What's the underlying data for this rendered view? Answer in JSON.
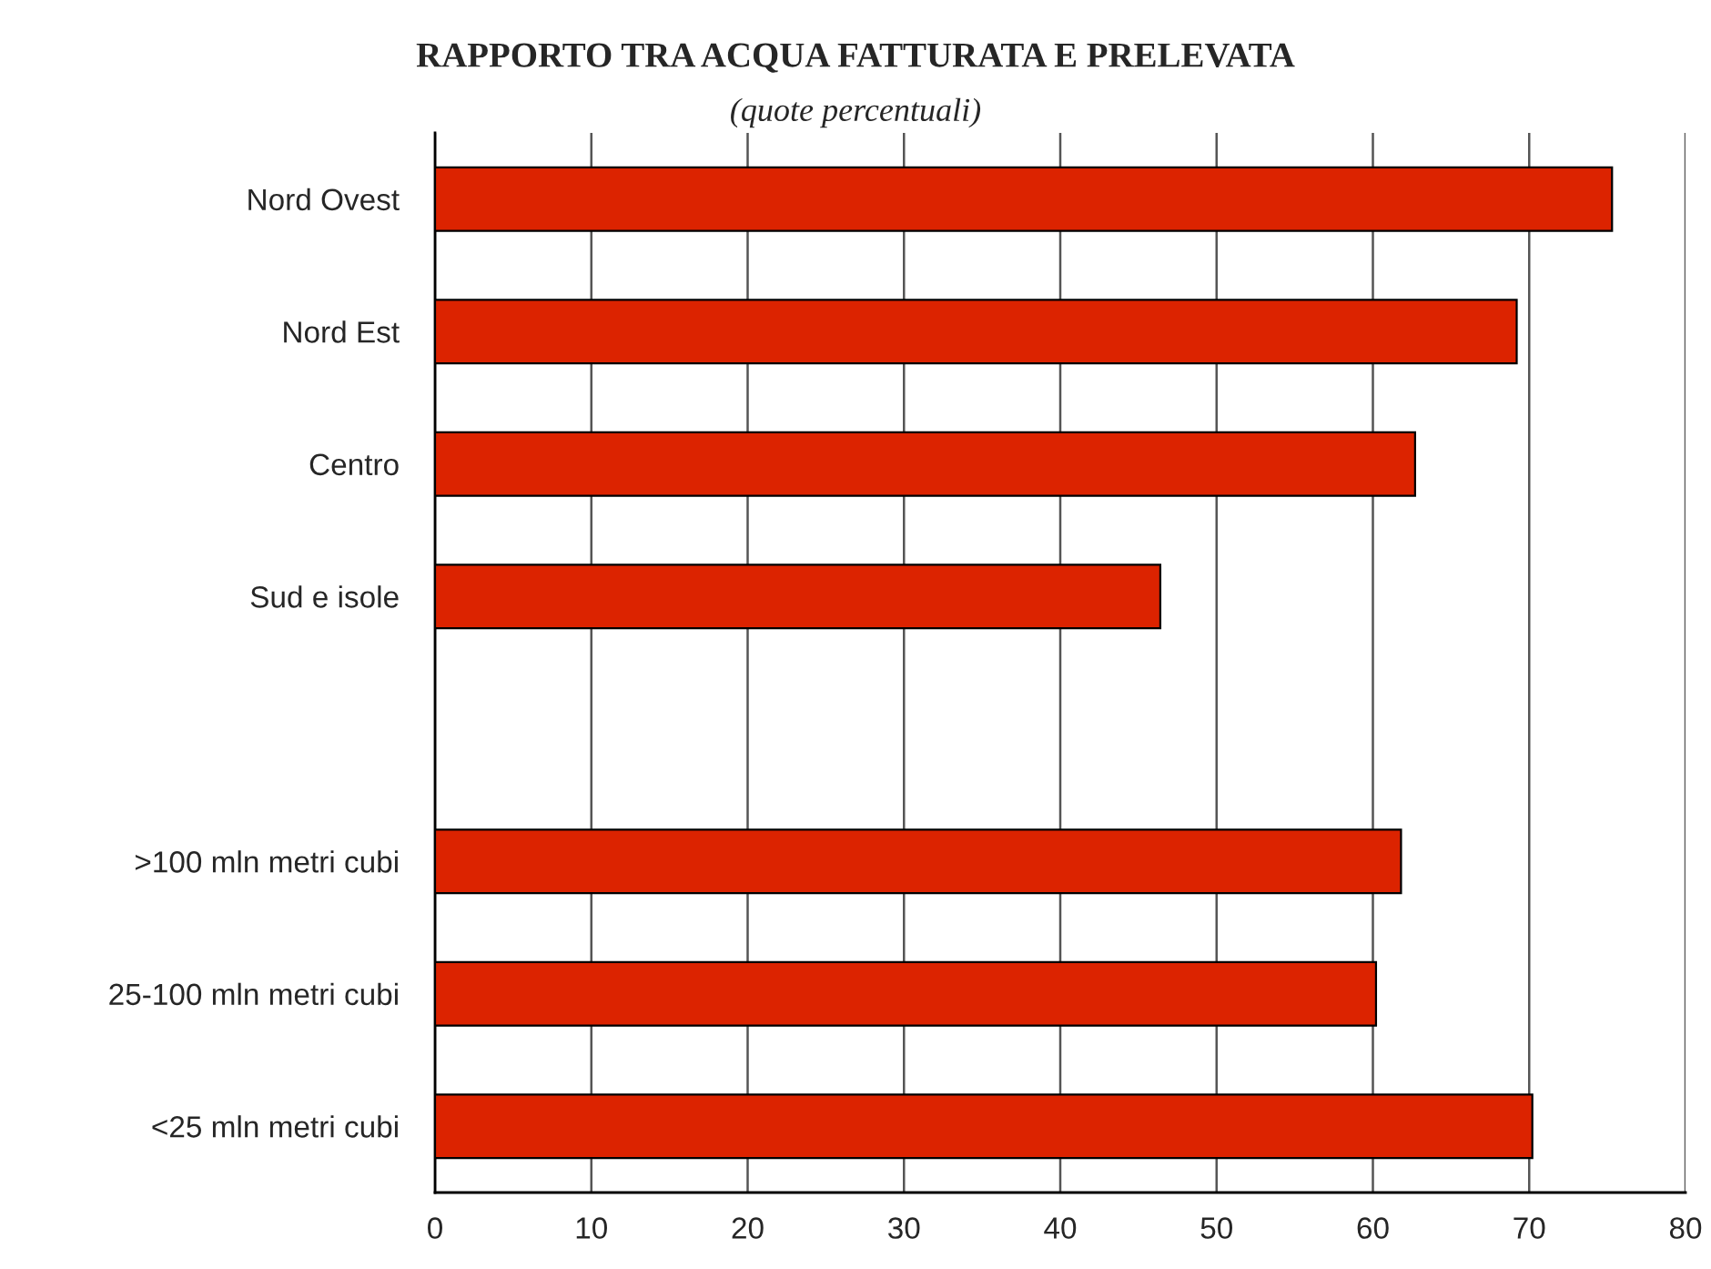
{
  "chart_data": {
    "type": "bar",
    "orientation": "horizontal",
    "title": "RAPPORTO TRA ACQUA FATTURATA E PRELEVATA",
    "subtitle": "(quote percentuali)",
    "categories": [
      "Nord Ovest",
      "Nord Est",
      "Centro",
      "Sud e isole",
      null,
      ">100 mln metri cubi",
      "25-100 mln metri cubi",
      "<25 mln metri cubi"
    ],
    "values": [
      75.3,
      69.2,
      62.7,
      46.4,
      null,
      61.8,
      60.2,
      70.2
    ],
    "color": "#dc2300",
    "xlim": [
      0,
      80
    ],
    "xticks": [
      0,
      10,
      20,
      30,
      40,
      50,
      60,
      70,
      80
    ],
    "grid": "x"
  }
}
